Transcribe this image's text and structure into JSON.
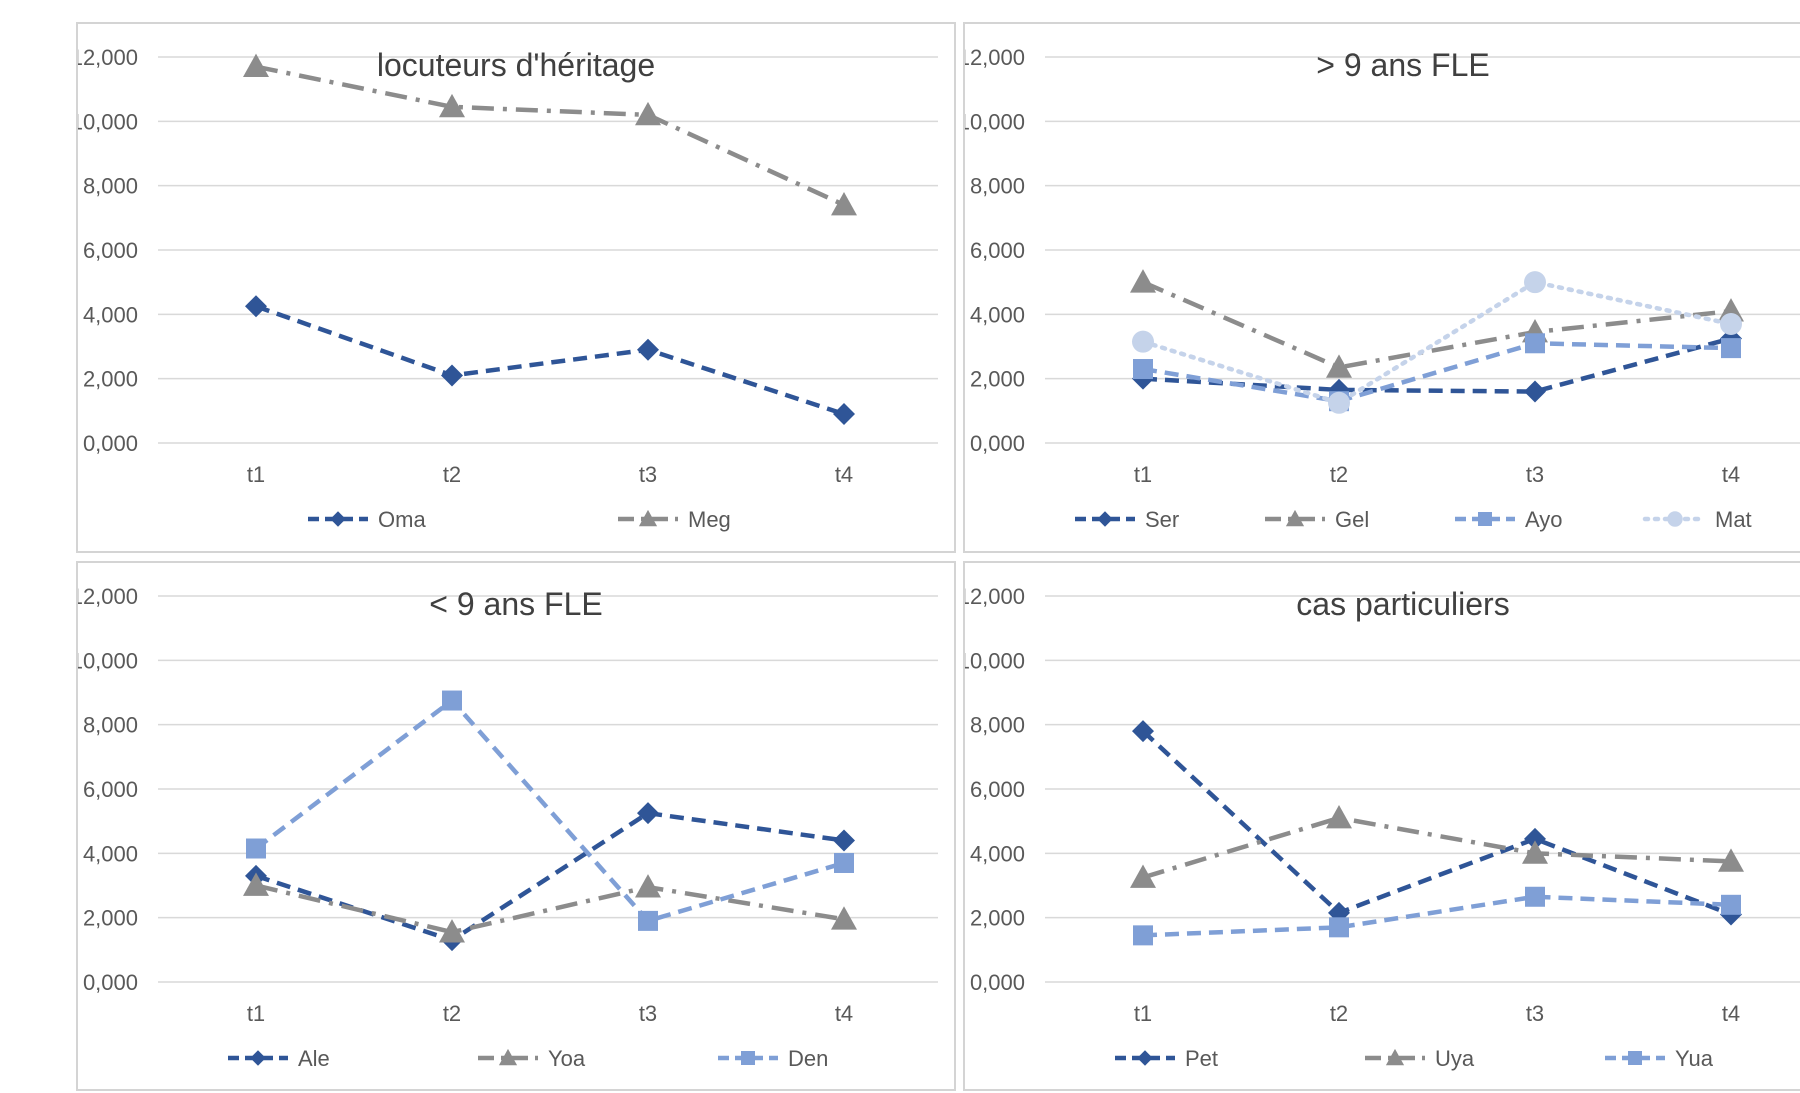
{
  "chart_data": [
    {
      "type": "line",
      "title": "locuteurs d'héritage",
      "categories": [
        "t1",
        "t2",
        "t3",
        "t4"
      ],
      "yticks": [
        "0,000",
        "2,000",
        "4,000",
        "6,000",
        "8,000",
        "10,000",
        "12,000"
      ],
      "ylim": [
        0,
        12
      ],
      "grid": true,
      "legend": "bottom",
      "series": [
        {
          "name": "Oma",
          "values": [
            4.25,
            2.1,
            2.9,
            0.9
          ],
          "color": "#2F5597",
          "marker": "diamond",
          "dash": "14,8"
        },
        {
          "name": "Meg",
          "values": [
            11.7,
            10.45,
            10.2,
            7.4
          ],
          "color": "#8C8C8C",
          "marker": "triangle",
          "dash": "22,9,4,9"
        }
      ]
    },
    {
      "type": "line",
      "title": "> 9 ans FLE",
      "categories": [
        "t1",
        "t2",
        "t3",
        "t4"
      ],
      "yticks": [
        "0,000",
        "2,000",
        "4,000",
        "6,000",
        "8,000",
        "10,000",
        "12,000"
      ],
      "ylim": [
        0,
        12
      ],
      "grid": true,
      "legend": "bottom",
      "series": [
        {
          "name": "Ser",
          "values": [
            2.0,
            1.65,
            1.6,
            3.25
          ],
          "color": "#2F5597",
          "marker": "diamond",
          "dash": "14,8"
        },
        {
          "name": "Gel",
          "values": [
            5.0,
            2.35,
            3.45,
            4.1
          ],
          "color": "#8C8C8C",
          "marker": "triangle",
          "dash": "22,9,4,9"
        },
        {
          "name": "Ayo",
          "values": [
            2.3,
            1.3,
            3.1,
            2.95
          ],
          "color": "#7F9FD6",
          "marker": "square",
          "dash": "14,8"
        },
        {
          "name": "Mat",
          "values": [
            3.15,
            1.25,
            5.0,
            3.7
          ],
          "color": "#C5D3EA",
          "marker": "circle",
          "dash": "3,7"
        }
      ]
    },
    {
      "type": "line",
      "title": "< 9 ans FLE",
      "categories": [
        "t1",
        "t2",
        "t3",
        "t4"
      ],
      "yticks": [
        "0,000",
        "2,000",
        "4,000",
        "6,000",
        "8,000",
        "10,000",
        "12,000"
      ],
      "ylim": [
        0,
        12
      ],
      "grid": true,
      "legend": "bottom",
      "series": [
        {
          "name": "Ale",
          "values": [
            3.3,
            1.3,
            5.25,
            4.4
          ],
          "color": "#2F5597",
          "marker": "diamond",
          "dash": "14,8"
        },
        {
          "name": "Yoa",
          "values": [
            3.0,
            1.55,
            2.95,
            1.95
          ],
          "color": "#8C8C8C",
          "marker": "triangle",
          "dash": "22,9,4,9"
        },
        {
          "name": "Den",
          "values": [
            4.15,
            8.75,
            1.9,
            3.7
          ],
          "color": "#7F9FD6",
          "marker": "square",
          "dash": "14,8"
        }
      ]
    },
    {
      "type": "line",
      "title": "cas particuliers",
      "categories": [
        "t1",
        "t2",
        "t3",
        "t4"
      ],
      "yticks": [
        "0,000",
        "2,000",
        "4,000",
        "6,000",
        "8,000",
        "10,000",
        "12,000"
      ],
      "ylim": [
        0,
        12
      ],
      "grid": true,
      "legend": "bottom",
      "series": [
        {
          "name": "Pet",
          "values": [
            7.8,
            2.15,
            4.45,
            2.1
          ],
          "color": "#2F5597",
          "marker": "diamond",
          "dash": "14,8"
        },
        {
          "name": "Uya",
          "values": [
            3.25,
            5.1,
            4.0,
            3.75
          ],
          "color": "#8C8C8C",
          "marker": "triangle",
          "dash": "22,9,4,9"
        },
        {
          "name": "Yua",
          "values": [
            1.45,
            1.7,
            2.65,
            2.4
          ],
          "color": "#7F9FD6",
          "marker": "square",
          "dash": "14,8"
        }
      ]
    }
  ]
}
